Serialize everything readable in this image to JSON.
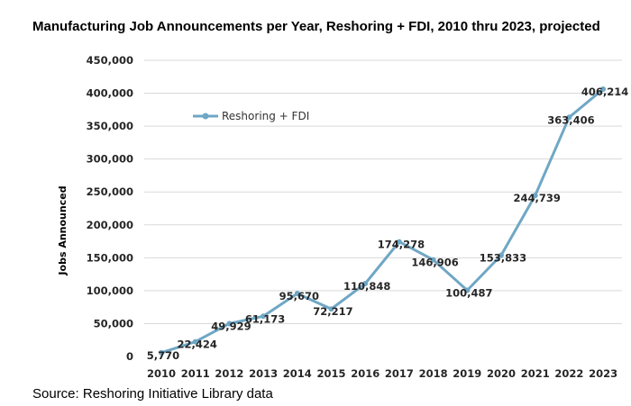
{
  "chart_data": {
    "type": "line",
    "title": "Manufacturing Job Announcements per Year, Reshoring + FDI, 2010 thru 2023, projected",
    "source": "Source: Reshoring Initiative Library data",
    "xlabel": "",
    "ylabel": "Jobs Announced",
    "ylim": [
      0,
      450000
    ],
    "yticks": [
      0,
      50000,
      100000,
      150000,
      200000,
      250000,
      300000,
      350000,
      400000,
      450000
    ],
    "ytick_labels": [
      "0",
      "50,000",
      "100,000",
      "150,000",
      "200,000",
      "250,000",
      "300,000",
      "350,000",
      "400,000",
      "450,000"
    ],
    "grid": true,
    "legend_position": "upper-left",
    "categories": [
      "2010",
      "2011",
      "2012",
      "2013",
      "2014",
      "2015",
      "2016",
      "2017",
      "2018",
      "2019",
      "2020",
      "2021",
      "2022",
      "2023"
    ],
    "series": [
      {
        "name": "Reshoring + FDI",
        "color": "#6fa7c5",
        "values": [
          5770,
          22424,
          49929,
          61173,
          95670,
          72217,
          110848,
          174278,
          146906,
          100487,
          153833,
          244739,
          363406,
          406214
        ],
        "labels": [
          "5,770",
          "22,424",
          "49,929",
          "61,173",
          "95,670",
          "72,217",
          "110,848",
          "174,278",
          "146,906",
          "100,487",
          "153,833",
          "244,739",
          "363,406",
          "406,214"
        ]
      }
    ]
  }
}
